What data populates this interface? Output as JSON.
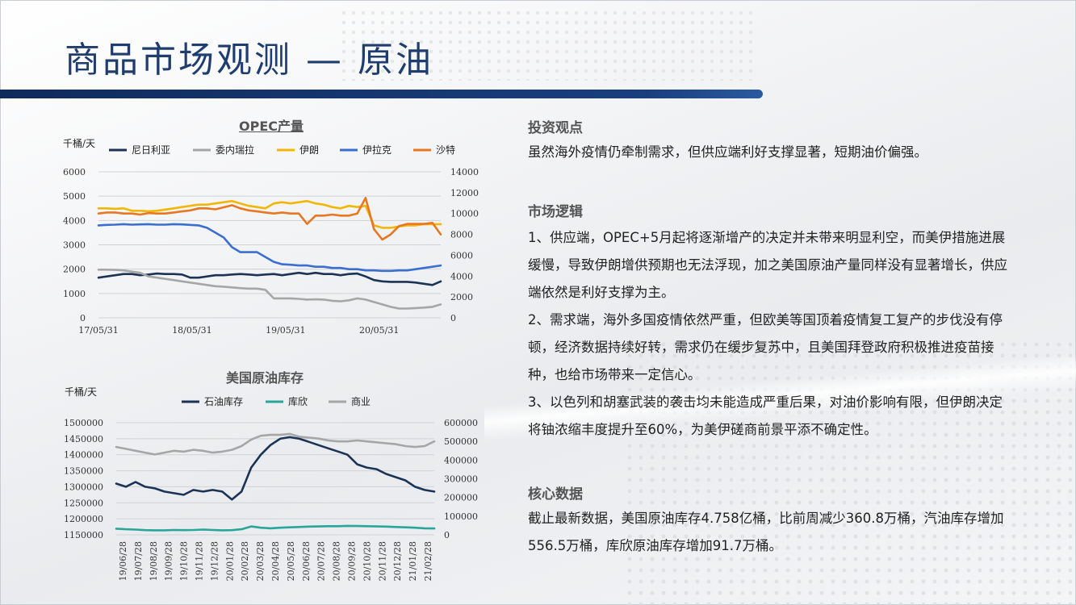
{
  "title": "商品市场观测 — 原油",
  "colors": {
    "accent": "#1f3d6e",
    "bar": "#1a3f7e"
  },
  "chart_data": [
    {
      "type": "line",
      "title": "OPEC产量",
      "ylabel_left": "千桶/天",
      "ylim_left": [
        0,
        6000
      ],
      "ylim_right": [
        0,
        14000
      ],
      "yticks_left": [
        "6000",
        "5000",
        "4000",
        "3000",
        "2000",
        "1000",
        "0"
      ],
      "yticks_right": [
        "14000",
        "12000",
        "10000",
        "8000",
        "6000",
        "4000",
        "2000",
        "0"
      ],
      "x_ticks": [
        "17/05/31",
        "18/05/31",
        "19/05/31",
        "20/05/31"
      ],
      "series": [
        {
          "name": "尼日利亚",
          "axis": "left",
          "color": "#1b3355",
          "values": [
            1650,
            1700,
            1750,
            1800,
            1800,
            1750,
            1780,
            1820,
            1800,
            1800,
            1780,
            1650,
            1650,
            1700,
            1750,
            1750,
            1780,
            1800,
            1780,
            1750,
            1780,
            1800,
            1750,
            1800,
            1850,
            1800,
            1850,
            1800,
            1800,
            1750,
            1800,
            1820,
            1700,
            1550,
            1500,
            1480,
            1480,
            1480,
            1450,
            1400,
            1350,
            1500
          ]
        },
        {
          "name": "委内瑞拉",
          "axis": "left",
          "color": "#a6a6a6",
          "values": [
            1980,
            1980,
            1970,
            1950,
            1900,
            1850,
            1700,
            1650,
            1600,
            1550,
            1500,
            1450,
            1400,
            1350,
            1300,
            1280,
            1250,
            1220,
            1200,
            1200,
            1150,
            800,
            800,
            800,
            780,
            750,
            760,
            750,
            700,
            680,
            720,
            800,
            750,
            650,
            550,
            450,
            380,
            380,
            400,
            420,
            450,
            550
          ]
        },
        {
          "name": "伊朗",
          "axis": "left",
          "color": "#f2b705",
          "values": [
            4500,
            4500,
            4480,
            4500,
            4400,
            4400,
            4380,
            4400,
            4450,
            4500,
            4550,
            4600,
            4650,
            4650,
            4700,
            4750,
            4800,
            4700,
            4600,
            4550,
            4500,
            4700,
            4750,
            4700,
            4750,
            4800,
            4700,
            4650,
            4550,
            4500,
            4600,
            4550,
            4600,
            3800,
            3700,
            3700,
            3750,
            3800,
            3800,
            3850,
            3850,
            3850
          ]
        },
        {
          "name": "伊拉克",
          "axis": "left",
          "color": "#3a6fd0",
          "values": [
            3800,
            3820,
            3830,
            3850,
            3830,
            3840,
            3850,
            3830,
            3830,
            3850,
            3840,
            3820,
            3800,
            3700,
            3500,
            3300,
            2900,
            2700,
            2700,
            2700,
            2500,
            2300,
            2200,
            2180,
            2150,
            2150,
            2100,
            2100,
            2050,
            2050,
            2000,
            2000,
            1950,
            1950,
            1930,
            1930,
            1950,
            1950,
            2000,
            2050,
            2100,
            2150
          ]
        },
        {
          "name": "沙特",
          "axis": "right",
          "color": "#e87722",
          "values": [
            10000,
            10100,
            10100,
            10000,
            10000,
            9900,
            10050,
            10000,
            10000,
            10100,
            10200,
            10300,
            10500,
            10500,
            10400,
            10600,
            10800,
            10500,
            10300,
            10200,
            10100,
            10000,
            10100,
            10000,
            10000,
            9000,
            9800,
            9800,
            9900,
            9800,
            9800,
            10000,
            11500,
            8500,
            7500,
            8000,
            8800,
            9000,
            9000,
            9000,
            9100,
            8000
          ]
        }
      ]
    },
    {
      "type": "line",
      "title": "美国原油库存",
      "ylabel_left": "千桶/天",
      "ylim_left": [
        1150000,
        1500000
      ],
      "ylim_right": [
        0,
        600000
      ],
      "yticks_left": [
        "1500000",
        "1450000",
        "1400000",
        "1350000",
        "1300000",
        "1250000",
        "1200000",
        "1150000"
      ],
      "yticks_right": [
        "600000",
        "500000",
        "400000",
        "300000",
        "200000",
        "100000",
        "0"
      ],
      "x_ticks": [
        "19/06/28",
        "19/07/28",
        "19/08/28",
        "19/09/28",
        "19/10/28",
        "19/11/28",
        "19/12/28",
        "20/01/28",
        "20/02/28",
        "20/03/28",
        "20/04/28",
        "20/05/28",
        "20/06/28",
        "20/07/28",
        "20/08/28",
        "20/09/28",
        "20/10/28",
        "20/11/28",
        "20/12/28",
        "21/01/28",
        "21/02/28"
      ],
      "series": [
        {
          "name": "石油库存",
          "axis": "left",
          "color": "#1b3355",
          "values": [
            1310000,
            1300000,
            1315000,
            1300000,
            1295000,
            1285000,
            1280000,
            1275000,
            1290000,
            1285000,
            1290000,
            1285000,
            1260000,
            1285000,
            1360000,
            1400000,
            1430000,
            1450000,
            1455000,
            1450000,
            1440000,
            1430000,
            1420000,
            1410000,
            1400000,
            1370000,
            1360000,
            1355000,
            1340000,
            1330000,
            1320000,
            1300000,
            1290000,
            1285000
          ]
        },
        {
          "name": "库欣",
          "axis": "right",
          "color": "#2aa59a",
          "values": [
            33000,
            30000,
            28000,
            25000,
            24000,
            24000,
            26000,
            25000,
            26000,
            28000,
            26000,
            24000,
            25000,
            30000,
            45000,
            38000,
            35000,
            38000,
            40000,
            42000,
            44000,
            45000,
            46000,
            46000,
            48000,
            47000,
            46000,
            45000,
            44000,
            42000,
            40000,
            38000,
            35000,
            34000
          ]
        },
        {
          "name": "商业",
          "axis": "right",
          "color": "#a6a6a6",
          "values": [
            470000,
            460000,
            450000,
            440000,
            430000,
            440000,
            450000,
            445000,
            455000,
            450000,
            440000,
            445000,
            455000,
            475000,
            510000,
            530000,
            535000,
            535000,
            540000,
            525000,
            520000,
            515000,
            505000,
            500000,
            500000,
            505000,
            500000,
            495000,
            490000,
            485000,
            475000,
            470000,
            475000,
            500000
          ]
        }
      ]
    }
  ],
  "panel": {
    "h1": "投资观点",
    "p1": "虽然海外疫情仍牵制需求，但供应端利好支撑显著，短期油价偏强。",
    "h2": "市场逻辑",
    "p2": "1、供应端，OPEC+5月起将逐渐增产的决定并未带来明显利空，而美伊措施进展缓慢，导致伊朗增供预期也无法浮现，加之美国原油产量同样没有显著增长，供应端依然是利好支撑为主。",
    "p3": "2、需求端，海外多国疫情依然严重，但欧美等国顶着疫情复工复产的步伐没有停顿，经济数据持续好转，需求仍在缓步复苏中，且美国拜登政府积极推进疫苗接种，也给市场带来一定信心。",
    "p4": "3、以色列和胡塞武装的袭击均未能造成严重后果，对油价影响有限，但伊朗决定将铀浓缩丰度提升至60%，为美伊磋商前景平添不确定性。",
    "h3": "核心数据",
    "p5": "截止最新数据，美国原油库存4.758亿桶，比前周减少360.8万桶，汽油库存增加556.5万桶，库欣原油库存增加91.7万桶。"
  }
}
